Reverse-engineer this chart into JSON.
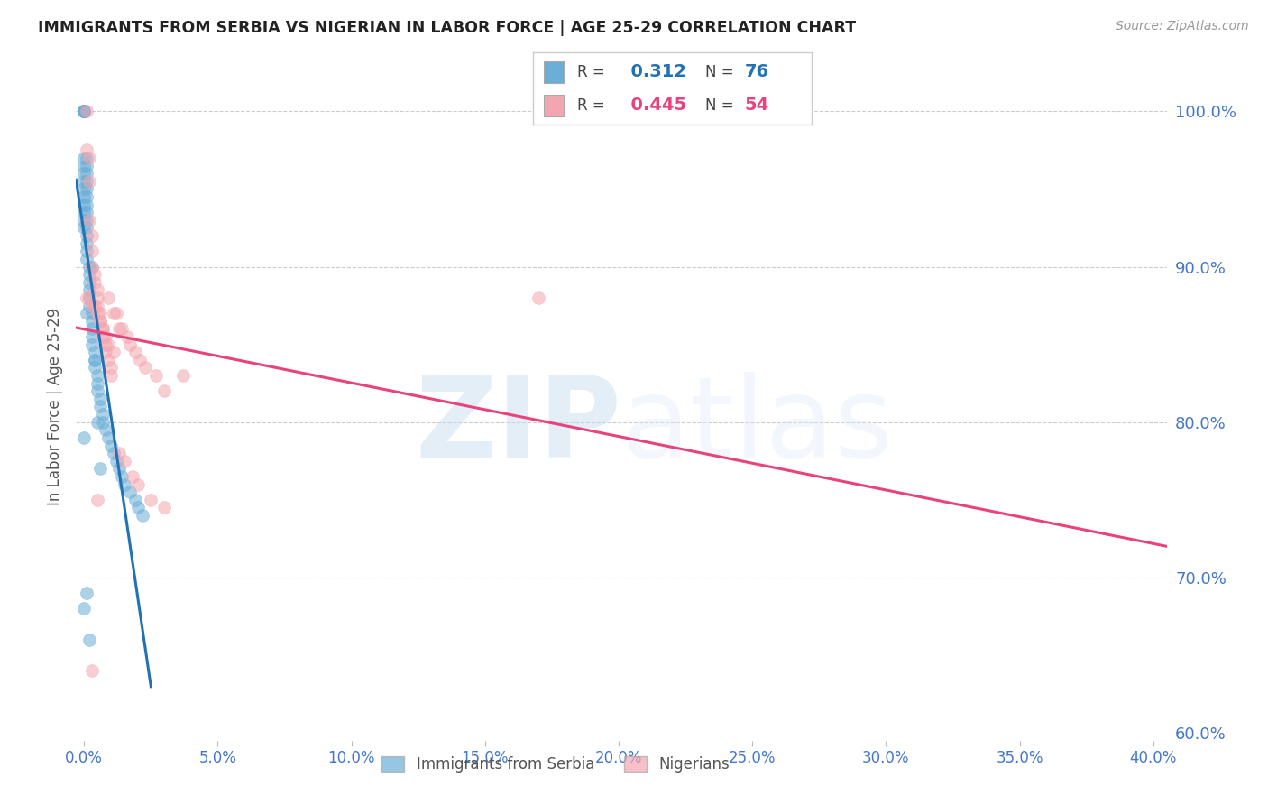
{
  "title": "IMMIGRANTS FROM SERBIA VS NIGERIAN IN LABOR FORCE | AGE 25-29 CORRELATION CHART",
  "source": "Source: ZipAtlas.com",
  "ylabel": "In Labor Force | Age 25-29",
  "legend_label1": "Immigrants from Serbia",
  "legend_label2": "Nigerians",
  "r1": 0.312,
  "n1": 76,
  "r2": 0.445,
  "n2": 54,
  "color1": "#6baed6",
  "color2": "#f4a6b0",
  "trendline1_color": "#2171b5",
  "trendline2_color": "#e8437a",
  "background_color": "#ffffff",
  "grid_color": "#cccccc",
  "axis_color": "#4477cc",
  "title_color": "#222222",
  "watermark_zip": "ZIP",
  "watermark_atlas": "atlas",
  "serbia_x": [
    0.0,
    0.0,
    0.0,
    0.0,
    0.0,
    0.0,
    0.0,
    0.0,
    0.0,
    0.0,
    0.0,
    0.0,
    0.0,
    0.0,
    0.0,
    0.0,
    0.0,
    0.0,
    0.0,
    0.0,
    0.001,
    0.001,
    0.001,
    0.001,
    0.001,
    0.001,
    0.001,
    0.001,
    0.001,
    0.001,
    0.001,
    0.001,
    0.001,
    0.001,
    0.002,
    0.002,
    0.002,
    0.002,
    0.002,
    0.002,
    0.003,
    0.003,
    0.003,
    0.003,
    0.003,
    0.004,
    0.004,
    0.004,
    0.005,
    0.005,
    0.005,
    0.006,
    0.006,
    0.007,
    0.007,
    0.008,
    0.009,
    0.01,
    0.011,
    0.012,
    0.013,
    0.014,
    0.015,
    0.017,
    0.019,
    0.02,
    0.022,
    0.0,
    0.0,
    0.001,
    0.001,
    0.002,
    0.003,
    0.004,
    0.005,
    0.006
  ],
  "serbia_y": [
    1.0,
    1.0,
    1.0,
    1.0,
    1.0,
    1.0,
    1.0,
    1.0,
    1.0,
    1.0,
    0.97,
    0.965,
    0.96,
    0.955,
    0.95,
    0.945,
    0.94,
    0.935,
    0.93,
    0.925,
    0.97,
    0.965,
    0.96,
    0.955,
    0.95,
    0.945,
    0.94,
    0.935,
    0.93,
    0.925,
    0.92,
    0.915,
    0.91,
    0.905,
    0.9,
    0.895,
    0.89,
    0.885,
    0.88,
    0.875,
    0.87,
    0.865,
    0.86,
    0.855,
    0.85,
    0.845,
    0.84,
    0.835,
    0.83,
    0.825,
    0.82,
    0.815,
    0.81,
    0.805,
    0.8,
    0.795,
    0.79,
    0.785,
    0.78,
    0.775,
    0.77,
    0.765,
    0.76,
    0.755,
    0.75,
    0.745,
    0.74,
    0.79,
    0.68,
    0.87,
    0.69,
    0.66,
    0.9,
    0.84,
    0.8,
    0.77
  ],
  "nigeria_x": [
    0.001,
    0.001,
    0.002,
    0.002,
    0.002,
    0.003,
    0.003,
    0.003,
    0.004,
    0.004,
    0.005,
    0.005,
    0.005,
    0.006,
    0.006,
    0.007,
    0.007,
    0.008,
    0.008,
    0.009,
    0.01,
    0.01,
    0.011,
    0.012,
    0.013,
    0.014,
    0.016,
    0.017,
    0.019,
    0.021,
    0.023,
    0.027,
    0.03,
    0.037,
    0.001,
    0.002,
    0.003,
    0.004,
    0.005,
    0.006,
    0.007,
    0.008,
    0.009,
    0.011,
    0.013,
    0.015,
    0.018,
    0.02,
    0.025,
    0.03,
    0.003,
    0.005,
    0.009,
    0.17
  ],
  "nigeria_y": [
    1.0,
    0.975,
    0.97,
    0.955,
    0.93,
    0.92,
    0.91,
    0.9,
    0.895,
    0.89,
    0.885,
    0.88,
    0.875,
    0.87,
    0.865,
    0.86,
    0.855,
    0.85,
    0.845,
    0.84,
    0.835,
    0.83,
    0.87,
    0.87,
    0.86,
    0.86,
    0.855,
    0.85,
    0.845,
    0.84,
    0.835,
    0.83,
    0.82,
    0.83,
    0.88,
    0.88,
    0.875,
    0.875,
    0.87,
    0.865,
    0.86,
    0.855,
    0.85,
    0.845,
    0.78,
    0.775,
    0.765,
    0.76,
    0.75,
    0.745,
    0.64,
    0.75,
    0.88,
    0.88
  ],
  "xlim": [
    -0.003,
    0.405
  ],
  "ylim": [
    0.595,
    1.025
  ],
  "xticks": [
    0.0,
    0.05,
    0.1,
    0.15,
    0.2,
    0.25,
    0.3,
    0.35,
    0.4
  ],
  "yticks": [
    0.6,
    0.7,
    0.8,
    0.9,
    1.0
  ],
  "ytick_labels_right": [
    "60.0%",
    "70.0%",
    "80.0%",
    "90.0%",
    "100.0%"
  ],
  "xtick_labels": [
    "0.0%",
    "5.0%",
    "10.0%",
    "15.0%",
    "20.0%",
    "25.0%",
    "30.0%",
    "35.0%",
    "40.0%"
  ],
  "grid_yticks": [
    0.7,
    0.8,
    0.9,
    1.0
  ],
  "trendline1_x": [
    -0.003,
    0.025
  ],
  "trendline2_x": [
    -0.003,
    0.405
  ]
}
